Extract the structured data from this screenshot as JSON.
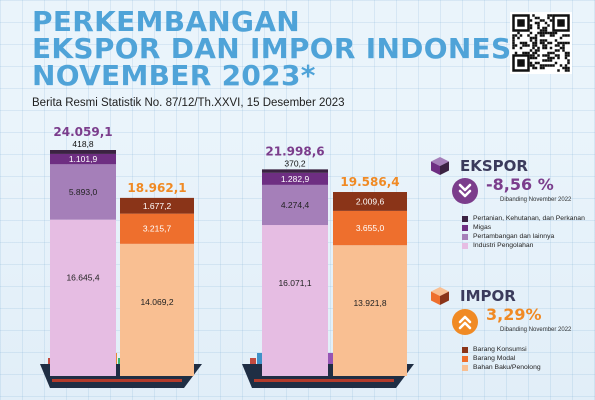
{
  "title_lines": [
    "PERKEMBANGAN",
    "EKSPOR DAN IMPOR INDONESIA",
    "NOVEMBER 2023*"
  ],
  "subtitle": "Berita Resmi Statistik No. 87/12/Th.XXVI, 15 Desember 2023",
  "colors": {
    "title": "#4fa3d8",
    "ekspor_total": "#7b3d8c",
    "impor_total": "#f08a24",
    "ekspor_pct": "#7b3d8c",
    "impor_pct": "#f08a24"
  },
  "chart_data": [
    {
      "type": "bar",
      "stacked": true,
      "categories": [
        "",
        ""
      ],
      "series": [
        {
          "name": "Industri Pengolahan",
          "values": [
            16645.4,
            16071.1
          ],
          "color": "#e6bde3"
        },
        {
          "name": "Pertambangan dan lainnya",
          "values": [
            5893.0,
            4274.4
          ],
          "color": "#a57fb9"
        },
        {
          "name": "Migas",
          "values": [
            1101.9,
            1282.9
          ],
          "color": "#6e2e82"
        },
        {
          "name": "Pertanian, Kehutanan, dan Perikanan",
          "values": [
            418.8,
            370.2
          ],
          "color": "#3b2242"
        }
      ],
      "value_labels": [
        [
          "16.645,4",
          "5.893,0",
          "1.101,9",
          "418,8"
        ],
        [
          "16.071,1",
          "4.274,4",
          "1.282,9",
          "370,2"
        ]
      ],
      "totals": [
        24059.1,
        21998.6
      ],
      "total_labels": [
        "24.059,1",
        "21.998,6"
      ]
    },
    {
      "type": "bar",
      "stacked": true,
      "categories": [
        "",
        ""
      ],
      "series": [
        {
          "name": "Bahan Baku/Penolong",
          "values": [
            14069.2,
            13921.8
          ],
          "color": "#f9bf92"
        },
        {
          "name": "Barang Modal",
          "values": [
            3215.7,
            3655.0
          ],
          "color": "#ee6f2d"
        },
        {
          "name": "Barang Konsumsi",
          "values": [
            1677.2,
            2009.6
          ],
          "color": "#8a3418"
        }
      ],
      "value_labels": [
        [
          "14.069,2",
          "3.215,7",
          "1.677,2"
        ],
        [
          "13.921,8",
          "3.655,0",
          "2.009,6"
        ]
      ],
      "totals": [
        18962.1,
        19586.4
      ],
      "total_labels": [
        "18.962,1",
        "19.586,4"
      ]
    }
  ],
  "ekspor": {
    "title": "EKSPOR",
    "change": "-8,56 %",
    "compare": "Dibanding November 2022",
    "direction_icon": "double-chevron-down-icon",
    "legend": [
      {
        "label": "Pertanian, Kehutanan, dan Perkanan",
        "color": "#3b2242"
      },
      {
        "label": "Migas",
        "color": "#6e2e82"
      },
      {
        "label": "Pertambangan dan lainnya",
        "color": "#a57fb9"
      },
      {
        "label": "Industri Pengolahan",
        "color": "#e6bde3"
      }
    ]
  },
  "impor": {
    "title": "IMPOR",
    "change": "3,29%",
    "compare": "Dibanding November 2022",
    "direction_icon": "double-chevron-up-icon",
    "legend": [
      {
        "label": "Barang Konsumsi",
        "color": "#8a3418"
      },
      {
        "label": "Barang Modal",
        "color": "#ee6f2d"
      },
      {
        "label": "Bahan Baku/Penolong",
        "color": "#f9bf92"
      }
    ]
  }
}
